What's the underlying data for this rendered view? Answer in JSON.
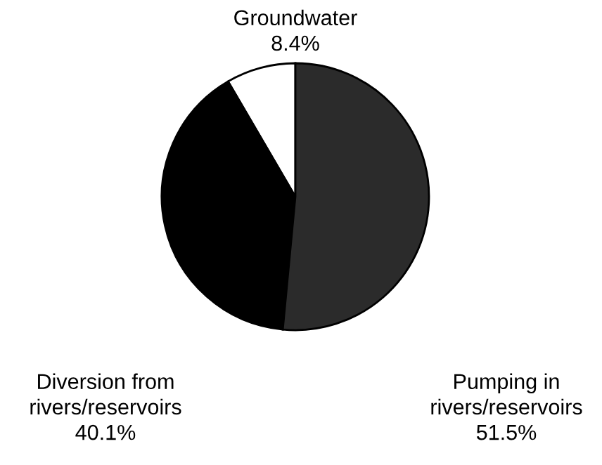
{
  "chart_data": {
    "type": "pie",
    "categories": [
      "Groundwater",
      "Diversion from\nrivers/reservoirs",
      "Pumping in\nrivers/reservoirs"
    ],
    "values": [
      8.4,
      40.1,
      51.5
    ],
    "colors": [
      "#ffffff",
      "#000000",
      "#2b2b2b"
    ],
    "value_labels": [
      "8.4%",
      "40.1%",
      "51.5%"
    ]
  }
}
